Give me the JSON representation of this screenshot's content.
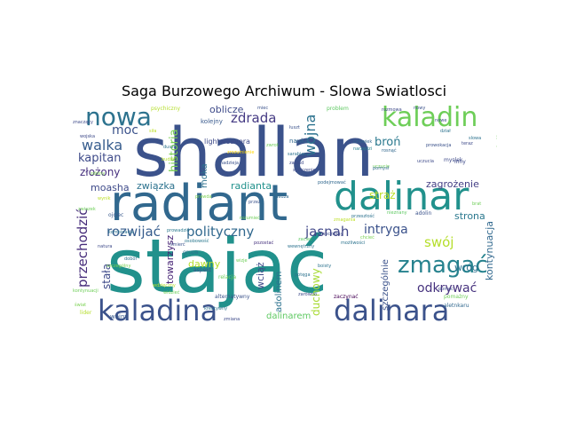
{
  "title": "Saga Burzowego Archiwum - Slowa Swiatlosci",
  "words": [
    {
      "text": "stajać",
      "color": "#21918c"
    },
    {
      "text": "shallan",
      "color": "#3b528b"
    },
    {
      "text": "radiant",
      "color": "#31688e"
    },
    {
      "text": "dalinar",
      "color": "#21918c"
    },
    {
      "text": "kaladina",
      "color": "#3b528b"
    },
    {
      "text": "dalinara",
      "color": "#3b528b"
    },
    {
      "text": "kaladin",
      "color": "#6ece58"
    },
    {
      "text": "nowa",
      "color": "#2c728e"
    },
    {
      "text": "zmagać",
      "color": "#26828e"
    },
    {
      "text": "rozwijać",
      "color": "#365c8d"
    },
    {
      "text": "polityczny",
      "color": "#31688e"
    },
    {
      "text": "jasnah",
      "color": "#404688"
    },
    {
      "text": "przechodzić",
      "color": "#472d7b"
    },
    {
      "text": "walka",
      "color": "#365c8d"
    },
    {
      "text": "moc",
      "color": "#3b528b"
    },
    {
      "text": "zdrada",
      "color": "#443983"
    },
    {
      "text": "wojna",
      "color": "#2c728e"
    },
    {
      "text": "historia",
      "color": "#7ad151"
    },
    {
      "text": "kapitan",
      "color": "#3e4a89"
    },
    {
      "text": "złożony",
      "color": "#46307e"
    },
    {
      "text": "moasha",
      "color": "#3e4a89"
    },
    {
      "text": "związka",
      "color": "#2c728e"
    },
    {
      "text": "radianta",
      "color": "#21918c"
    },
    {
      "text": "intryga",
      "color": "#3b528b"
    },
    {
      "text": "swój",
      "color": "#b5de2b"
    },
    {
      "text": "odkrywać",
      "color": "#46327e"
    },
    {
      "text": "kontynuacja",
      "color": "#31688e"
    },
    {
      "text": "zagrożenie",
      "color": "#433e85"
    },
    {
      "text": "broń",
      "color": "#2a788e"
    },
    {
      "text": "adolina",
      "color": "#6ece58"
    },
    {
      "text": "oblicze",
      "color": "#3e4a89"
    },
    {
      "text": "moka",
      "color": "#2c728e"
    },
    {
      "text": "stała",
      "color": "#3e4a89"
    },
    {
      "text": "straż",
      "color": "#bddf26"
    },
    {
      "text": "strona",
      "color": "#2a788e"
    },
    {
      "text": "wróg",
      "color": "#2c728e"
    },
    {
      "text": "duchowy",
      "color": "#a8db34"
    },
    {
      "text": "wciąż",
      "color": "#3e4a89"
    },
    {
      "text": "adolinem",
      "color": "#2c728e"
    },
    {
      "text": "dawny",
      "color": "#b5de2b"
    },
    {
      "text": "towarzysz",
      "color": "#482576"
    },
    {
      "text": "szczególnie",
      "color": "#3b528b"
    },
    {
      "text": "dalinarem",
      "color": "#5ec962"
    },
    {
      "text": "lightweavera",
      "color": "#3e4a89"
    },
    {
      "text": "nauka",
      "color": "#31688e"
    },
    {
      "text": "kolejny",
      "color": "#38598c"
    },
    {
      "text": "wojny",
      "color": "#38598c"
    },
    {
      "text": "psychiczny",
      "color": "#b5de2b"
    },
    {
      "text": "problem",
      "color": "#5ec962"
    },
    {
      "text": "grupa",
      "color": "#2c728e"
    },
    {
      "text": "aspekt",
      "color": "#3b528b"
    },
    {
      "text": "relacja",
      "color": "#6ece58"
    },
    {
      "text": "alternatywny",
      "color": "#3b528b"
    },
    {
      "text": "zaczynać",
      "color": "#440154"
    },
    {
      "text": "pomażny",
      "color": "#6ece58"
    },
    {
      "text": "aletnkaru",
      "color": "#31688e"
    },
    {
      "text": "ojciec",
      "color": "#38598c"
    },
    {
      "text": "adolin",
      "color": "#3b528b"
    },
    {
      "text": "myslek",
      "color": "#3e4a89"
    },
    {
      "text": "inny",
      "color": "#3e4a89"
    },
    {
      "text": "lider",
      "color": "#b5de2b"
    },
    {
      "text": "zdolny",
      "color": "#7ad151"
    },
    {
      "text": "wdzięczny",
      "color": "#b5de2b"
    },
    {
      "text": "osobowość",
      "color": "#2a788e"
    },
    {
      "text": "zarówno",
      "color": "#3e4a89"
    },
    {
      "text": "znaczący",
      "color": "#3e4a89"
    },
    {
      "text": "przeszłość",
      "color": "#2c728e"
    },
    {
      "text": "zmagania",
      "color": "#bddf26"
    },
    {
      "text": "kontynuacji",
      "color": "#6ece58"
    },
    {
      "text": "podejmować",
      "color": "#31688e"
    },
    {
      "text": "możliwości",
      "color": "#2c728e"
    },
    {
      "text": "uczucie",
      "color": "#6ece58"
    },
    {
      "text": "rosnąć",
      "color": "#31688e"
    },
    {
      "text": "narzędzi",
      "color": "#26828e"
    },
    {
      "text": "sarabian",
      "color": "#2c728e"
    },
    {
      "text": "zrozumienie",
      "color": "#ffd700"
    },
    {
      "text": "łuszt",
      "color": "#3b528b"
    },
    {
      "text": "zakład",
      "color": "#3e4a89"
    },
    {
      "text": "kreatywny",
      "color": "#2c728e"
    },
    {
      "text": "przez",
      "color": "#3b528b"
    },
    {
      "text": "zacieć",
      "color": "#5ec962"
    },
    {
      "text": "chcieć",
      "color": "#7ad151"
    },
    {
      "text": "boisty",
      "color": "#2c728e"
    },
    {
      "text": "kombinacja",
      "color": "#2c728e"
    },
    {
      "text": "budzić",
      "color": "#b5de2b"
    },
    {
      "text": "szczególny",
      "color": "#7ad151"
    },
    {
      "text": "prowadzić",
      "color": "#2a788e"
    },
    {
      "text": "wynik",
      "color": "#bddf26"
    },
    {
      "text": "dobór",
      "color": "#2c728e"
    },
    {
      "text": "pozostać",
      "color": "#46327e"
    },
    {
      "text": "nowy",
      "color": "#3b528b"
    },
    {
      "text": "wojska",
      "color": "#3e4a89"
    },
    {
      "text": "siła",
      "color": "#bddf26"
    },
    {
      "text": "zwrot",
      "color": "#6ece58"
    },
    {
      "text": "miec",
      "color": "#3b528b"
    },
    {
      "text": "prowokacja",
      "color": "#3b528b"
    },
    {
      "text": "pomoc",
      "color": "#3e4a89"
    },
    {
      "text": "świat",
      "color": "#7ad151"
    },
    {
      "text": "slowa",
      "color": "#2c728e"
    },
    {
      "text": "nowe",
      "color": "#3e4a89"
    },
    {
      "text": "zwiazek",
      "color": "#6ece58"
    },
    {
      "text": "natura",
      "color": "#3e4a89"
    },
    {
      "text": "nieznany",
      "color": "#5ec962"
    },
    {
      "text": "wewnętrzny",
      "color": "#2c728e"
    },
    {
      "text": "śmierć",
      "color": "#3b528b"
    },
    {
      "text": "widzieć",
      "color": "#6ece58"
    },
    {
      "text": "pomysł",
      "color": "#31688e"
    },
    {
      "text": "brat",
      "color": "#6ece58"
    },
    {
      "text": "zmiana",
      "color": "#3e4a89"
    },
    {
      "text": "nowoczesny",
      "color": "#3e4a89"
    },
    {
      "text": "prawda",
      "color": "#7ad151"
    },
    {
      "text": "wiedza",
      "color": "#31688e"
    },
    {
      "text": "rozmowa",
      "color": "#3e4a89"
    },
    {
      "text": "czlowiek",
      "color": "#31688e"
    },
    {
      "text": "rozumieć",
      "color": "#6ece58"
    },
    {
      "text": "spojrzenie",
      "color": "#3e4a89"
    },
    {
      "text": "dział",
      "color": "#2c728e"
    },
    {
      "text": "teraz",
      "color": "#3e4a89"
    },
    {
      "text": "dusza",
      "color": "#2c728e"
    },
    {
      "text": "nadzieja",
      "color": "#3b528b"
    },
    {
      "text": "wizje",
      "color": "#6ece58"
    },
    {
      "text": "potęga",
      "color": "#2c728e"
    },
    {
      "text": "uczucia",
      "color": "#3e4a89"
    }
  ]
}
